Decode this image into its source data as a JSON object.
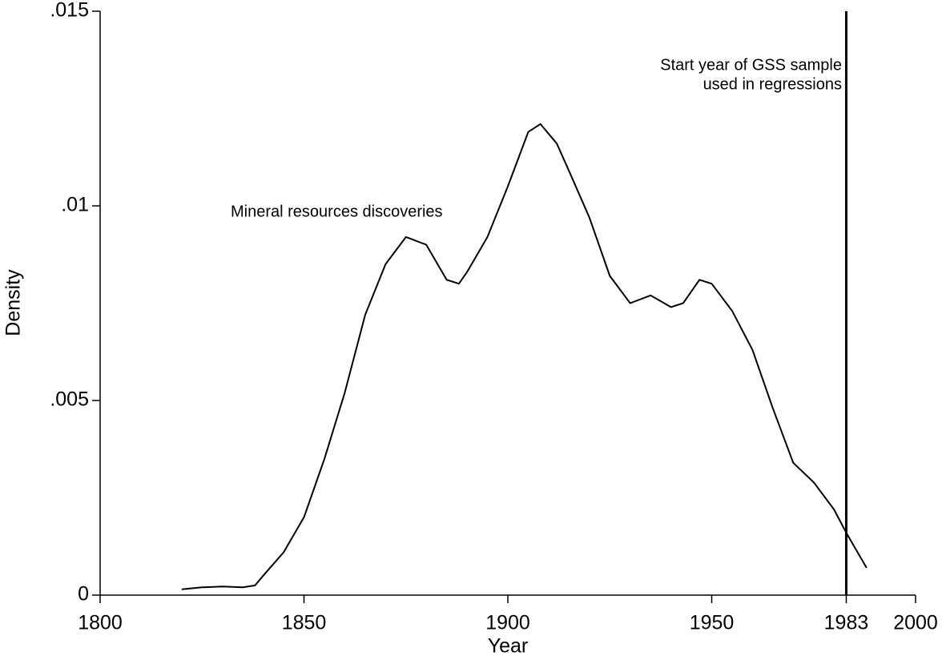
{
  "chart_data": {
    "type": "line",
    "x_label": "Year",
    "y_label": "Density",
    "x": [
      1820,
      1825,
      1830,
      1835,
      1838,
      1840,
      1845,
      1850,
      1855,
      1860,
      1865,
      1870,
      1875,
      1880,
      1885,
      1888,
      1890,
      1895,
      1900,
      1905,
      1908,
      1912,
      1915,
      1920,
      1925,
      1930,
      1935,
      1940,
      1943,
      1947,
      1950,
      1955,
      1960,
      1965,
      1970,
      1975,
      1980,
      1983,
      1988
    ],
    "values": [
      0.00015,
      0.0002,
      0.00022,
      0.0002,
      0.00025,
      0.0005,
      0.0011,
      0.002,
      0.0035,
      0.0052,
      0.0072,
      0.0085,
      0.0092,
      0.009,
      0.0081,
      0.008,
      0.0083,
      0.0092,
      0.0105,
      0.0119,
      0.0121,
      0.0116,
      0.0109,
      0.0097,
      0.0082,
      0.0075,
      0.0077,
      0.0074,
      0.0075,
      0.0081,
      0.008,
      0.0073,
      0.0063,
      0.0048,
      0.0034,
      0.0029,
      0.0022,
      0.0016,
      0.0007
    ],
    "color": "#000000",
    "xlim": [
      1800,
      2000
    ],
    "xticks": [
      1800,
      1850,
      1900,
      1950,
      1983,
      2000
    ],
    "ylim": [
      0,
      0.015
    ],
    "yticks": [
      0,
      {
        "value": 0.005,
        "label": ".005"
      },
      {
        "value": 0.01,
        "label": ".01"
      },
      {
        "value": 0.015,
        "label": ".015"
      }
    ],
    "vline": 1983,
    "annotations": [
      "Mineral resources discoveries",
      [
        "Start year of GSS sample",
        "used in regressions"
      ]
    ]
  }
}
